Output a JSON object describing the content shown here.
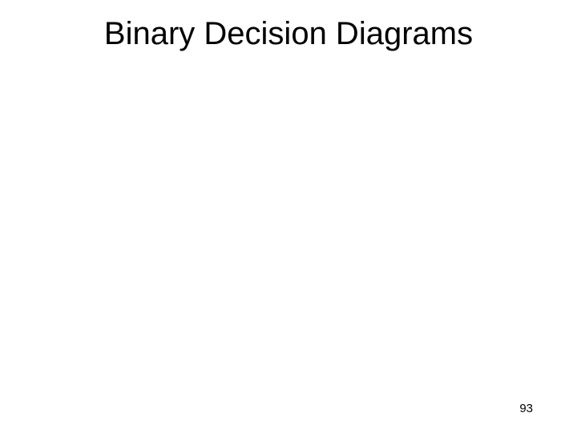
{
  "slide": {
    "title": "Binary Decision Diagrams",
    "page_number": "93",
    "background_color": "#ffffff",
    "title_fontsize": 40,
    "title_color": "#000000",
    "page_number_fontsize": 15,
    "page_number_color": "#000000"
  }
}
